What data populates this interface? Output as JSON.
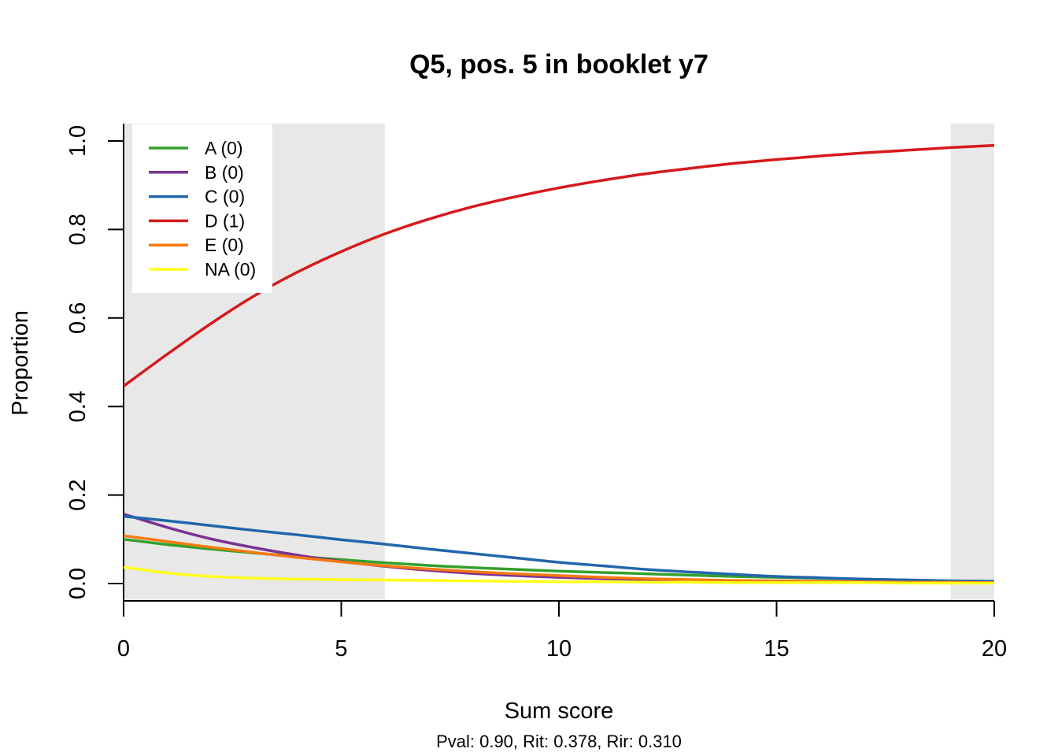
{
  "chart_data": {
    "type": "line",
    "title": "Q5, pos. 5 in booklet y7",
    "xlabel": "Sum score",
    "ylabel": "Proportion",
    "caption": "Pval: 0.90, Rit: 0.378, Rir: 0.310",
    "xlim": [
      0,
      20
    ],
    "ylim": [
      0,
      1
    ],
    "x_ticks": [
      "0",
      "5",
      "10",
      "15",
      "20"
    ],
    "y_ticks": [
      "0.0",
      "0.2",
      "0.4",
      "0.6",
      "0.8",
      "1.0"
    ],
    "x_tick_values": [
      0,
      5,
      10,
      15,
      20
    ],
    "y_tick_values": [
      0,
      0.2,
      0.4,
      0.6,
      0.8,
      1.0
    ],
    "shaded_regions": [
      [
        0,
        6
      ],
      [
        19,
        20
      ]
    ],
    "shade_color": "#e8e8e8",
    "legend_position": "top-left",
    "x": [
      0,
      1,
      2,
      3,
      4,
      5,
      6,
      7,
      8,
      9,
      10,
      11,
      12,
      13,
      14,
      15,
      16,
      17,
      18,
      19,
      20
    ],
    "series": [
      {
        "name": "A (0)",
        "color": "#33a02c",
        "values": [
          0.1,
          0.088,
          0.078,
          0.069,
          0.061,
          0.054,
          0.047,
          0.041,
          0.036,
          0.032,
          0.028,
          0.025,
          0.022,
          0.019,
          0.016,
          0.014,
          0.012,
          0.01,
          0.008,
          0.006,
          0.005
        ]
      },
      {
        "name": "B (0)",
        "color": "#7b3294",
        "values": [
          0.157,
          0.127,
          0.101,
          0.081,
          0.064,
          0.05,
          0.039,
          0.03,
          0.023,
          0.018,
          0.014,
          0.011,
          0.009,
          0.007,
          0.006,
          0.005,
          0.004,
          0.004,
          0.003,
          0.003,
          0.003
        ]
      },
      {
        "name": "C (0)",
        "color": "#2166ac",
        "values": [
          0.152,
          0.142,
          0.131,
          0.12,
          0.11,
          0.099,
          0.089,
          0.078,
          0.068,
          0.058,
          0.048,
          0.04,
          0.032,
          0.026,
          0.021,
          0.016,
          0.013,
          0.01,
          0.008,
          0.006,
          0.005
        ]
      },
      {
        "name": "D (1)",
        "color": "#d7191c",
        "values": [
          0.446,
          0.518,
          0.587,
          0.65,
          0.704,
          0.75,
          0.79,
          0.823,
          0.851,
          0.874,
          0.894,
          0.911,
          0.926,
          0.938,
          0.949,
          0.958,
          0.966,
          0.973,
          0.979,
          0.985,
          0.99
        ]
      },
      {
        "name": "E (0)",
        "color": "#f57a0e",
        "values": [
          0.108,
          0.095,
          0.082,
          0.07,
          0.059,
          0.049,
          0.04,
          0.033,
          0.027,
          0.022,
          0.018,
          0.014,
          0.011,
          0.009,
          0.007,
          0.006,
          0.005,
          0.004,
          0.003,
          0.003,
          0.002
        ]
      },
      {
        "name": "NA (0)",
        "color": "#ffff1a",
        "values": [
          0.037,
          0.024,
          0.016,
          0.012,
          0.01,
          0.009,
          0.008,
          0.007,
          0.006,
          0.005,
          0.004,
          0.004,
          0.003,
          0.003,
          0.002,
          0.002,
          0.002,
          0.002,
          0.001,
          0.001,
          0.001
        ]
      }
    ]
  }
}
